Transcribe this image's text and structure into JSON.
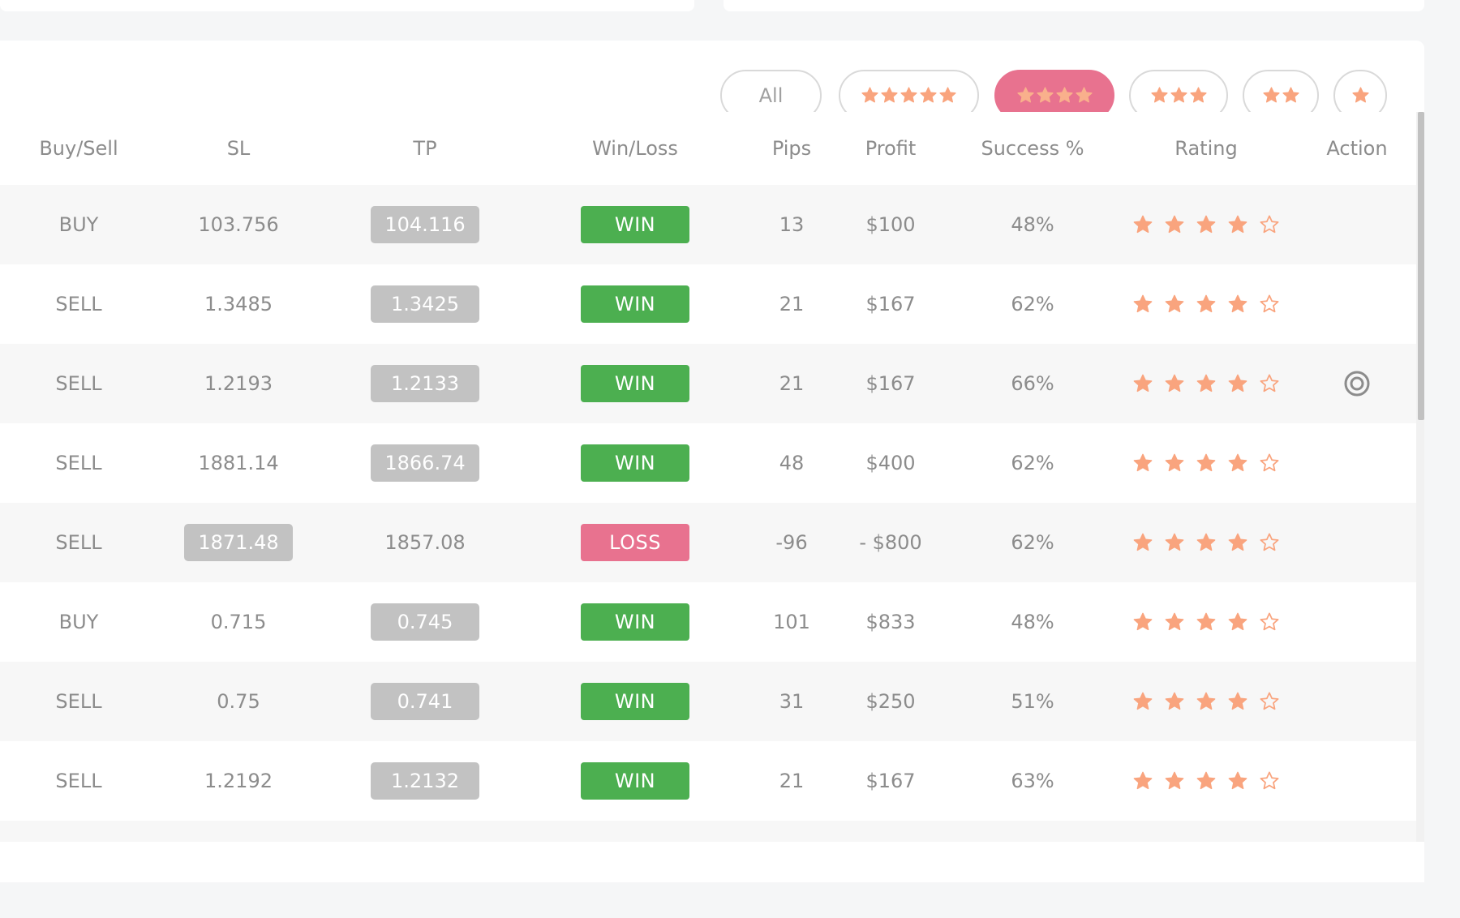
{
  "filters": {
    "all_label": "All",
    "options": [
      {
        "stars": 5,
        "active": false
      },
      {
        "stars": 4,
        "active": true
      },
      {
        "stars": 3,
        "active": false
      },
      {
        "stars": 2,
        "active": false
      },
      {
        "stars": 1,
        "active": false
      }
    ]
  },
  "columns": {
    "buy_sell": "Buy/Sell",
    "sl": "SL",
    "tp": "TP",
    "win_loss": "Win/Loss",
    "pips": "Pips",
    "profit": "Profit",
    "success": "Success %",
    "rating": "Rating",
    "action": "Action"
  },
  "rows": [
    {
      "side": "BUY",
      "sl": "103.756",
      "tp": "104.116",
      "hit": "tp",
      "result": "WIN",
      "pips": "13",
      "profit": "$100",
      "success": "48%",
      "rating": 4,
      "action": false
    },
    {
      "side": "SELL",
      "sl": "1.3485",
      "tp": "1.3425",
      "hit": "tp",
      "result": "WIN",
      "pips": "21",
      "profit": "$167",
      "success": "62%",
      "rating": 4,
      "action": false
    },
    {
      "side": "SELL",
      "sl": "1.2193",
      "tp": "1.2133",
      "hit": "tp",
      "result": "WIN",
      "pips": "21",
      "profit": "$167",
      "success": "66%",
      "rating": 4,
      "action": true
    },
    {
      "side": "SELL",
      "sl": "1881.14",
      "tp": "1866.74",
      "hit": "tp",
      "result": "WIN",
      "pips": "48",
      "profit": "$400",
      "success": "62%",
      "rating": 4,
      "action": false
    },
    {
      "side": "SELL",
      "sl": "1871.48",
      "tp": "1857.08",
      "hit": "sl",
      "result": "LOSS",
      "pips": "-96",
      "profit": "- $800",
      "success": "62%",
      "rating": 4,
      "action": false
    },
    {
      "side": "BUY",
      "sl": "0.715",
      "tp": "0.745",
      "hit": "tp",
      "result": "WIN",
      "pips": "101",
      "profit": "$833",
      "success": "48%",
      "rating": 4,
      "action": false
    },
    {
      "side": "SELL",
      "sl": "0.75",
      "tp": "0.741",
      "hit": "tp",
      "result": "WIN",
      "pips": "31",
      "profit": "$250",
      "success": "51%",
      "rating": 4,
      "action": false
    },
    {
      "side": "SELL",
      "sl": "1.2192",
      "tp": "1.2132",
      "hit": "tp",
      "result": "WIN",
      "pips": "21",
      "profit": "$167",
      "success": "63%",
      "rating": 4,
      "action": false
    },
    {
      "side": "",
      "sl": "",
      "tp": "",
      "hit": "tp",
      "result": "",
      "pips": "",
      "profit": "",
      "success": "",
      "rating": 0,
      "action": false
    }
  ],
  "colors": {
    "star": "#f9a47e",
    "star_on_active": "#f9b08c",
    "win": "#4caf50",
    "loss": "#e8728f",
    "active_pill": "#e8728f"
  },
  "icons": {
    "filled_star": "star-filled-icon",
    "empty_star": "star-outline-icon",
    "action": "target-icon"
  }
}
